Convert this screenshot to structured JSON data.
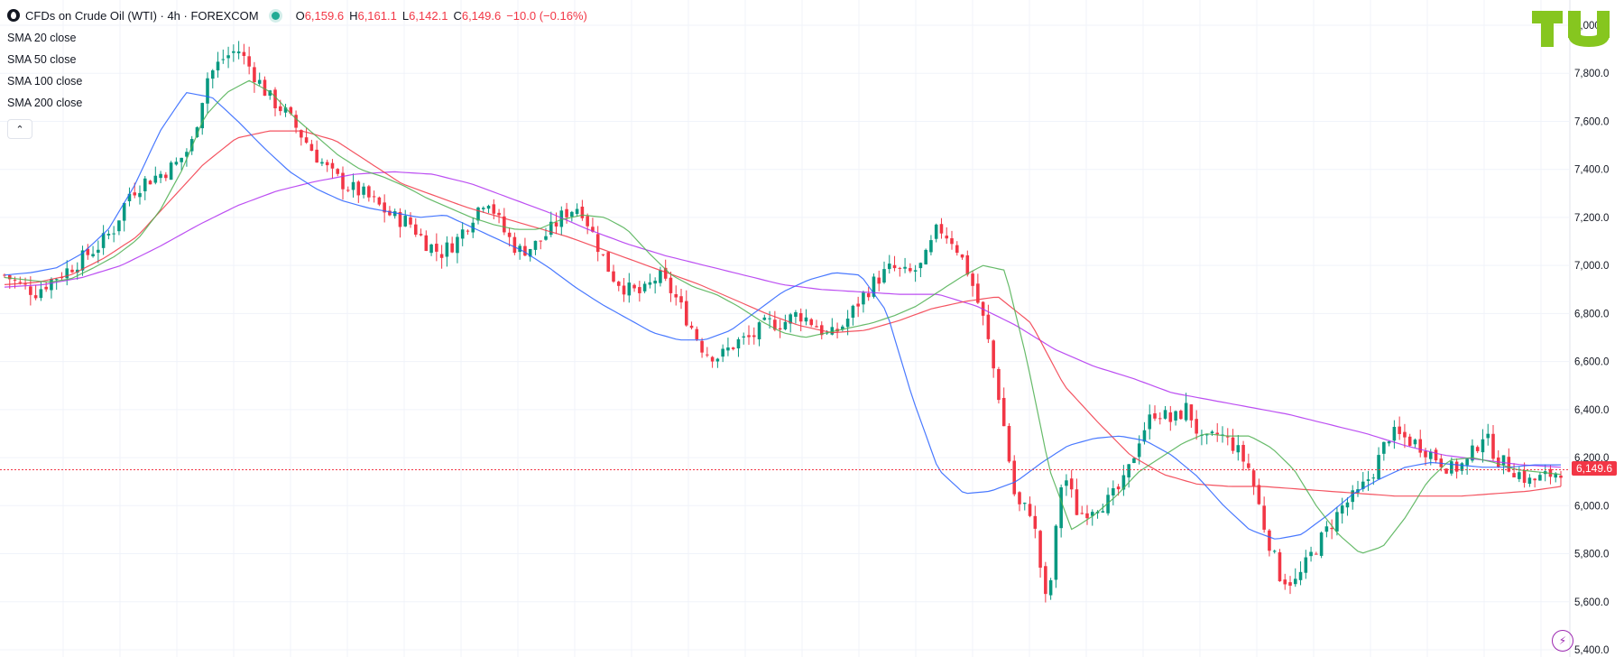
{
  "header": {
    "symbol": "CFDs on Crude Oil (WTI) · 4h · FOREXCOM",
    "o_label": "O",
    "o_value": "6,159.6",
    "h_label": "H",
    "h_value": "6,161.1",
    "l_label": "L",
    "l_value": "6,142.1",
    "c_label": "C",
    "c_value": "6,149.6",
    "change": "−10.0 (−0.16%)"
  },
  "indicators": [
    "SMA 20 close",
    "SMA 50 close",
    "SMA 100 close",
    "SMA 200 close"
  ],
  "last_price_label": "6,149.6",
  "colors": {
    "up": "#089981",
    "down": "#f23645",
    "sma20": "#4caf50",
    "sma50": "#2962ff",
    "sma100": "#f23645",
    "sma200": "#b030f0",
    "logo": "#86c61f"
  },
  "icons": {
    "collapse": "chevron-up-icon",
    "bolt": "lightning-icon",
    "symbol": "oil-drop-icon"
  },
  "chart_data": {
    "type": "candlestick",
    "y_axis": {
      "range": [
        5400,
        8000
      ],
      "ticks": [
        5400,
        5600,
        5800,
        6000,
        6200,
        6400,
        6600,
        6800,
        7000,
        7200,
        7400,
        7600,
        7800,
        8000
      ],
      "tick_labels": [
        "5,400.0",
        "5,600.0",
        "5,800.0",
        "6,000.0",
        "6,200.0",
        "6,400.0",
        "6,600.0",
        "6,800.0",
        "7,000.0",
        "7,200.0",
        "7,400.0",
        "7,600.0",
        "7,800.0",
        "8,000.0"
      ]
    },
    "last_price": 6149.6,
    "close_path": [
      6960,
      6920,
      6890,
      6940,
      6980,
      7030,
      7080,
      7150,
      7300,
      7350,
      7380,
      7420,
      7500,
      7780,
      7860,
      7900,
      7800,
      7700,
      7640,
      7550,
      7460,
      7380,
      7330,
      7300,
      7250,
      7200,
      7180,
      7100,
      7050,
      7100,
      7200,
      7290,
      7150,
      7060,
      7080,
      7140,
      7220,
      7250,
      7100,
      6960,
      6900,
      6880,
      6960,
      6880,
      6760,
      6640,
      6620,
      6680,
      6700,
      6760,
      6760,
      6800,
      6760,
      6700,
      6760,
      6860,
      6940,
      6990,
      6960,
      7000,
      7160,
      7100,
      6960,
      6750,
      6420,
      6000,
      5980,
      5560,
      6150,
      5960,
      6000,
      6020,
      6100,
      6300,
      6400,
      6350,
      6410,
      6250,
      6300,
      6250,
      6150,
      5900,
      5700,
      5680,
      5800,
      5900,
      6000,
      6050,
      6150,
      6300,
      6280,
      6250,
      6200,
      6150,
      6180,
      6300,
      6190,
      6150,
      6100,
      6120,
      6150
    ],
    "sma20_path": [
      6950,
      6940,
      6930,
      6945,
      6990,
      7040,
      7110,
      7230,
      7400,
      7620,
      7720,
      7770,
      7720,
      7620,
      7540,
      7460,
      7400,
      7370,
      7330,
      7280,
      7240,
      7200,
      7170,
      7150,
      7150,
      7190,
      7210,
      7200,
      7150,
      7050,
      6960,
      6910,
      6880,
      6830,
      6770,
      6720,
      6700,
      6720,
      6740,
      6760,
      6790,
      6830,
      6890,
      6950,
      7000,
      6980,
      6600,
      6150,
      5900,
      5960,
      6040,
      6140,
      6200,
      6260,
      6300,
      6290,
      6290,
      6240,
      6150,
      6000,
      5880,
      5800,
      5830,
      5950,
      6100,
      6190,
      6200,
      6180,
      6150,
      6140,
      6130
    ],
    "sma50_path": [
      6960,
      6970,
      6990,
      7050,
      7150,
      7330,
      7560,
      7720,
      7700,
      7600,
      7490,
      7390,
      7320,
      7270,
      7240,
      7220,
      7200,
      7210,
      7160,
      7110,
      7060,
      6990,
      6910,
      6840,
      6780,
      6720,
      6690,
      6690,
      6730,
      6810,
      6890,
      6940,
      6970,
      6960,
      6810,
      6450,
      6150,
      6050,
      6060,
      6100,
      6180,
      6250,
      6280,
      6290,
      6270,
      6210,
      6120,
      6000,
      5900,
      5860,
      5880,
      5960,
      6050,
      6110,
      6160,
      6180,
      6170,
      6160,
      6160,
      6170,
      6170
    ],
    "sma100_path": [
      6920,
      6930,
      6960,
      7030,
      7120,
      7270,
      7420,
      7530,
      7560,
      7560,
      7520,
      7430,
      7340,
      7290,
      7240,
      7200,
      7160,
      7120,
      7070,
      7020,
      6970,
      6920,
      6860,
      6800,
      6750,
      6720,
      6730,
      6770,
      6820,
      6850,
      6870,
      6760,
      6500,
      6350,
      6210,
      6130,
      6090,
      6080,
      6080,
      6070,
      6060,
      6050,
      6040,
      6040,
      6040,
      6050,
      6060,
      6080
    ],
    "sma200_path": [
      6910,
      6920,
      6950,
      7000,
      7080,
      7170,
      7250,
      7310,
      7350,
      7380,
      7390,
      7380,
      7340,
      7280,
      7220,
      7150,
      7090,
      7040,
      7000,
      6960,
      6920,
      6900,
      6890,
      6880,
      6880,
      6830,
      6750,
      6650,
      6580,
      6530,
      6470,
      6440,
      6410,
      6380,
      6340,
      6300,
      6250,
      6210,
      6190,
      6170,
      6160
    ]
  }
}
